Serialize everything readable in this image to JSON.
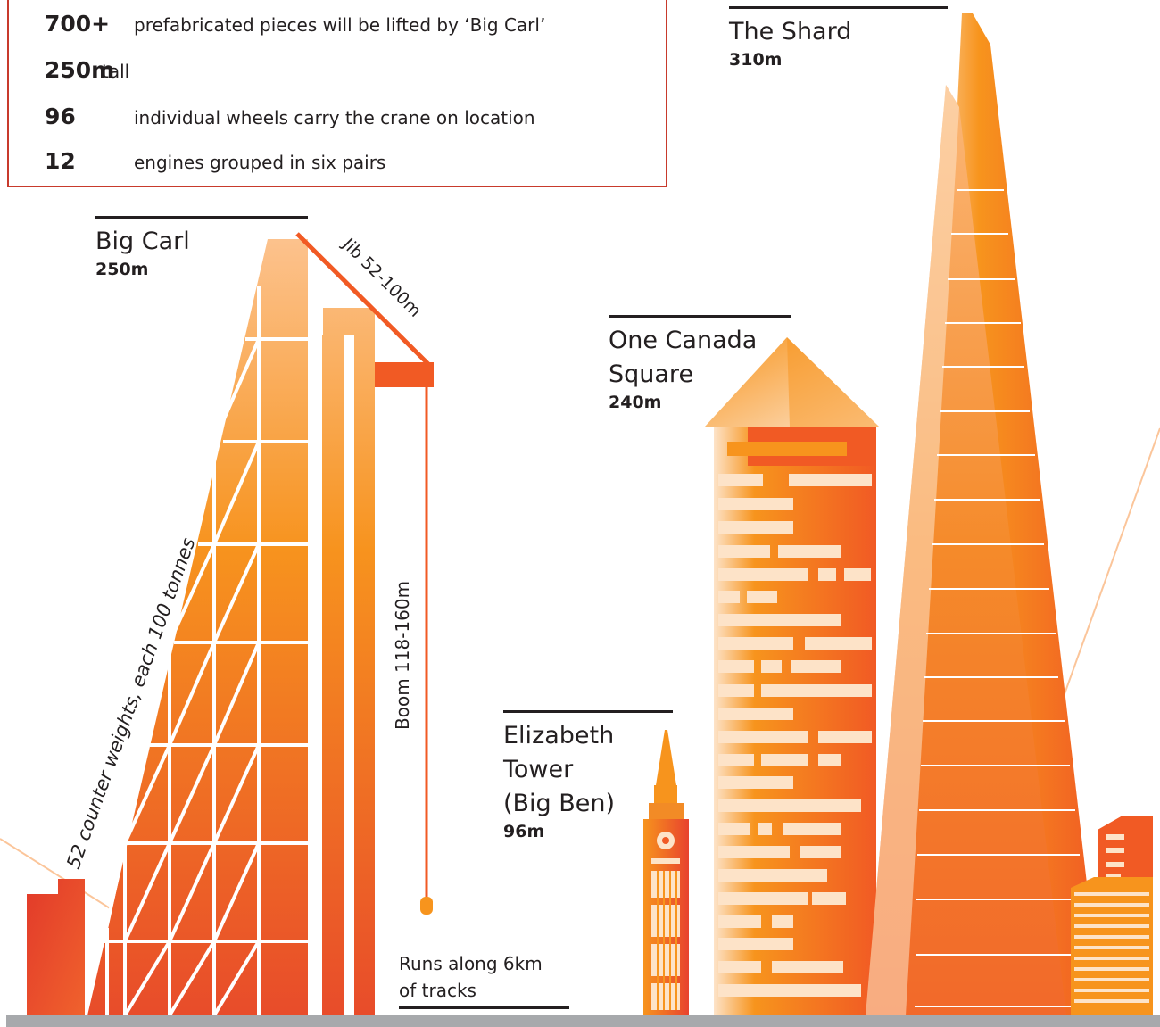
{
  "facts": [
    {
      "number": "700+",
      "text": "prefabricated pieces will be lifted by ‘Big Carl’"
    },
    {
      "number": "250m",
      "text": "tall"
    },
    {
      "number": "96",
      "text": "individual wheels carry the crane on location"
    },
    {
      "number": "12",
      "text": "engines grouped in six pairs"
    }
  ],
  "structures": {
    "big_carl": {
      "name": "Big Carl",
      "height": "250m"
    },
    "one_canada_square": {
      "name": "One Canada\nSquare",
      "height": "240m"
    },
    "elizabeth_tower": {
      "name": "Elizabeth\nTower\n(Big Ben)",
      "height": "96m"
    },
    "the_shard": {
      "name": "The Shard",
      "height": "310m"
    }
  },
  "annotations": {
    "jib": "Jib 52-100m",
    "boom": "Boom 118-160m",
    "counterweights": "52 counter weights, each 100 tonnes",
    "tracks_line1": "Runs along 6km",
    "tracks_line2": "of tracks"
  },
  "colors": {
    "accent_red": "#e8432e",
    "accent_orange": "#f7941d",
    "peach": "#fde3c8",
    "ground": "#a7a9ac",
    "text": "#231f20"
  }
}
